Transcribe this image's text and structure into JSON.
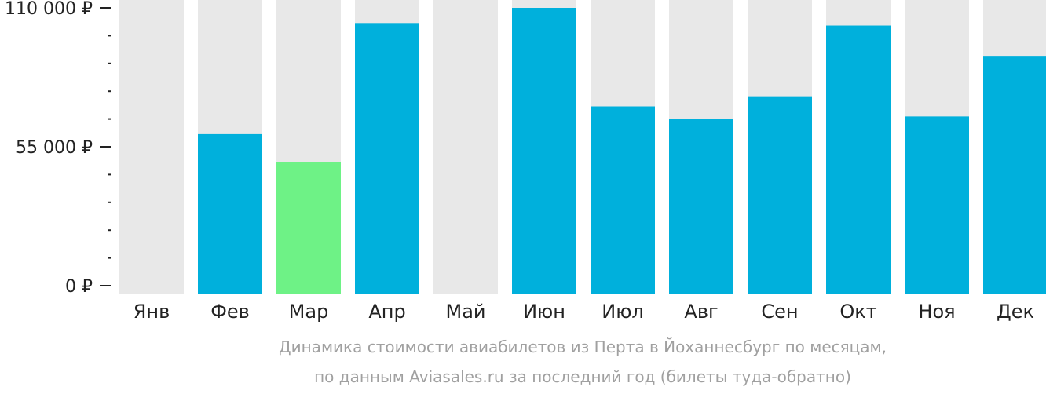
{
  "chart_data": {
    "type": "bar",
    "categories": [
      "Янв",
      "Фев",
      "Мар",
      "Апр",
      "Май",
      "Июн",
      "Июл",
      "Авг",
      "Сен",
      "Окт",
      "Ноя",
      "Дек"
    ],
    "values": [
      null,
      60000,
      49000,
      104000,
      null,
      110000,
      71000,
      66000,
      75000,
      103000,
      67000,
      91000
    ],
    "highlight_index": 2,
    "ylim": [
      0,
      110000
    ],
    "yticks": [
      {
        "value": 0,
        "label": "0 ₽"
      },
      {
        "value": 55000,
        "label": "55 000 ₽"
      },
      {
        "value": 110000,
        "label": "110 000 ₽"
      }
    ],
    "minor_tick_step": 11000,
    "colors": {
      "bar": "#00b0dc",
      "highlight": "#6ef286",
      "background_column": "#e8e8e8",
      "axis": "#222222"
    },
    "caption": [
      "Динамика стоимости авиабилетов из Перта в Йоханнесбург по месяцам,",
      "по данным Aviasales.ru за последний год (билеты туда-обратно)"
    ]
  }
}
